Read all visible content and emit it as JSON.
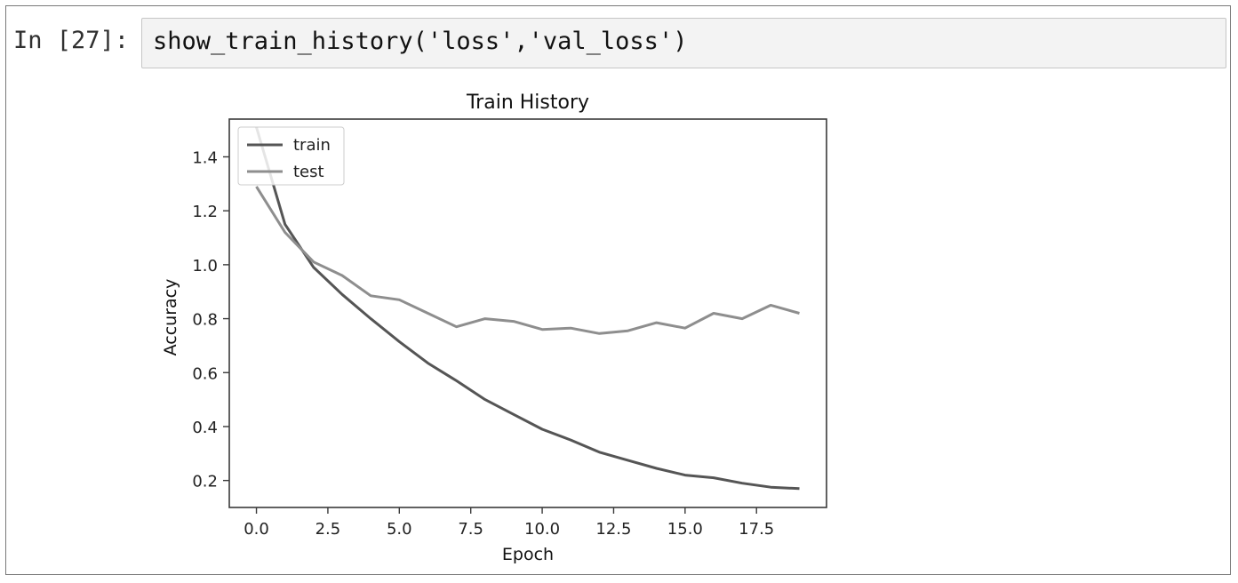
{
  "cell": {
    "prompt": "In [27]:",
    "code": "show_train_history('loss','val_loss')"
  },
  "chart_data": {
    "type": "line",
    "title": "Train History",
    "xlabel": "Epoch",
    "ylabel": "Accuracy",
    "xlim": [
      -0.95,
      19.95
    ],
    "ylim": [
      0.1,
      1.54
    ],
    "xticks": [
      0.0,
      2.5,
      5.0,
      7.5,
      10.0,
      12.5,
      15.0,
      17.5
    ],
    "xtick_labels": [
      "0.0",
      "2.5",
      "5.0",
      "7.5",
      "10.0",
      "12.5",
      "15.0",
      "17.5"
    ],
    "yticks": [
      0.2,
      0.4,
      0.6,
      0.8,
      1.0,
      1.2,
      1.4
    ],
    "ytick_labels": [
      "0.2",
      "0.4",
      "0.6",
      "0.8",
      "1.0",
      "1.2",
      "1.4"
    ],
    "legend_position": "upper-left",
    "grid": false,
    "series": [
      {
        "name": "train",
        "color": "#555555",
        "x": [
          0,
          1,
          2,
          3,
          4,
          5,
          6,
          7,
          8,
          9,
          10,
          11,
          12,
          13,
          14,
          15,
          16,
          17,
          18,
          19
        ],
        "y": [
          1.51,
          1.15,
          0.99,
          0.89,
          0.8,
          0.715,
          0.635,
          0.57,
          0.5,
          0.445,
          0.39,
          0.35,
          0.305,
          0.275,
          0.245,
          0.22,
          0.21,
          0.19,
          0.175,
          0.17
        ]
      },
      {
        "name": "test",
        "color": "#8e8e8e",
        "x": [
          0,
          1,
          2,
          3,
          4,
          5,
          6,
          7,
          8,
          9,
          10,
          11,
          12,
          13,
          14,
          15,
          16,
          17,
          18,
          19
        ],
        "y": [
          1.29,
          1.12,
          1.01,
          0.96,
          0.885,
          0.87,
          0.82,
          0.77,
          0.8,
          0.79,
          0.76,
          0.765,
          0.745,
          0.755,
          0.785,
          0.765,
          0.82,
          0.8,
          0.85,
          0.82
        ]
      }
    ]
  }
}
